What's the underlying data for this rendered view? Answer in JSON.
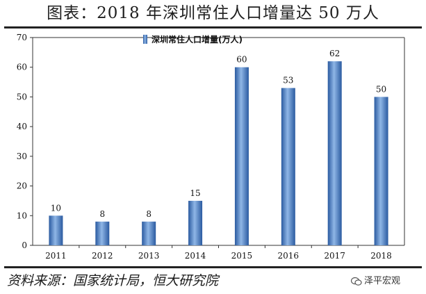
{
  "title": "图表：2018 年深圳常住人口增量达 50 万人",
  "source": "资料来源：国家统计局，恒大研究院",
  "watermark": "泽平宏观",
  "chart_data": {
    "type": "bar",
    "categories": [
      "2011",
      "2012",
      "2013",
      "2014",
      "2015",
      "2016",
      "2017",
      "2018"
    ],
    "series": [
      {
        "name": "深圳常住人口增量(万人)",
        "values": [
          10,
          8,
          8,
          15,
          60,
          53,
          62,
          50
        ],
        "color": "#3d78be"
      }
    ],
    "ylim": [
      0,
      70
    ],
    "yticks": [
      0,
      10,
      20,
      30,
      40,
      50,
      60,
      70
    ],
    "data_labels": true,
    "legend": "top-center",
    "grid": false
  }
}
